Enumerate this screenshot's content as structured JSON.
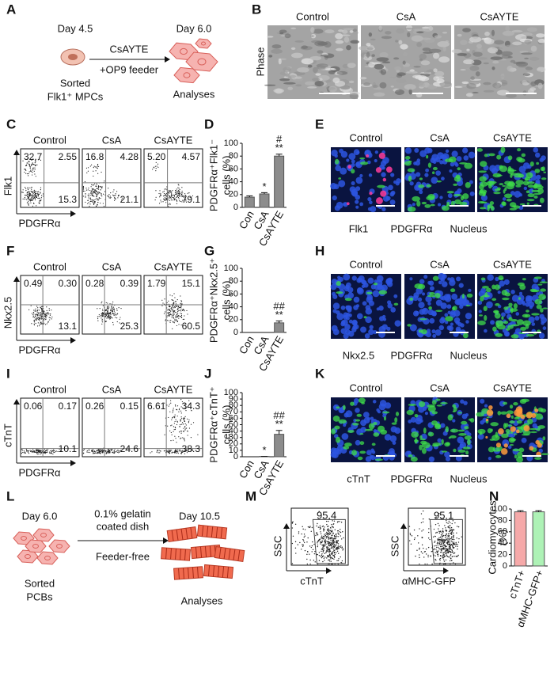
{
  "panel_a": {
    "label": "A",
    "day_start": "Day 4.5",
    "day_end": "Day 6.0",
    "treatment": "CsAYTE",
    "condition": "+OP9 feeder",
    "source": [
      "Sorted",
      "Flk1⁺ MPCs"
    ],
    "result": "Analyses"
  },
  "panel_b": {
    "label": "B",
    "row_label": "Phase",
    "titles": [
      "Control",
      "CsA",
      "CsAYTE"
    ]
  },
  "flow_panels": [
    {
      "label": "C",
      "ylabel": "Flk1",
      "xlabel": "PDGFRα",
      "ylabel_color": "#e02020",
      "xlabel_color": "#1a9a2a",
      "plots": [
        {
          "title": "Control",
          "quadrants": [
            "32.7",
            "2.55",
            "15.3"
          ]
        },
        {
          "title": "CsA",
          "quadrants": [
            "16.8",
            "4.28",
            "21.1"
          ]
        },
        {
          "title": "CsAYTE",
          "quadrants": [
            "5.20",
            "4.57",
            "79.1"
          ]
        }
      ]
    },
    {
      "label": "F",
      "ylabel": "Nkx2.5",
      "xlabel": "PDGFRα",
      "ylabel_color": "#e02020",
      "xlabel_color": "#1a9a2a",
      "plots": [
        {
          "title": "Control",
          "quadrants": [
            "0.49",
            "0.30",
            "13.1"
          ]
        },
        {
          "title": "CsA",
          "quadrants": [
            "0.28",
            "0.39",
            "25.3"
          ]
        },
        {
          "title": "CsAYTE",
          "quadrants": [
            "1.79",
            "15.1",
            "60.5"
          ]
        }
      ]
    },
    {
      "label": "I",
      "ylabel": "cTnT",
      "xlabel": "PDGFRα",
      "ylabel_color": "#e02020",
      "xlabel_color": "#1a9a2a",
      "plots": [
        {
          "title": "Control",
          "quadrants": [
            "0.06",
            "0.17",
            "10.1"
          ]
        },
        {
          "title": "CsA",
          "quadrants": [
            "0.26",
            "0.15",
            "24.6"
          ]
        },
        {
          "title": "CsAYTE",
          "quadrants": [
            "6.61",
            "34.3",
            "38.3"
          ]
        }
      ]
    }
  ],
  "image_panels": [
    {
      "label": "E",
      "titles": [
        "Control",
        "CsA",
        "CsAYTE"
      ],
      "legend": [
        {
          "text": "Flk1",
          "color": "#e02020"
        },
        {
          "text": "PDGFRα",
          "color": "#1a9a2a"
        },
        {
          "text": "Nucleus",
          "color": "#1a8ad0"
        }
      ]
    },
    {
      "label": "H",
      "titles": [
        "Control",
        "CsA",
        "CsAYTE"
      ],
      "legend": [
        {
          "text": "Nkx2.5",
          "color": "#e02020"
        },
        {
          "text": "PDGFRα",
          "color": "#1a9a2a"
        },
        {
          "text": "Nucleus",
          "color": "#1a8ad0"
        }
      ]
    },
    {
      "label": "K",
      "titles": [
        "Control",
        "CsA",
        "CsAYTE"
      ],
      "legend": [
        {
          "text": "cTnT",
          "color": "#e02020"
        },
        {
          "text": "PDGFRα",
          "color": "#1a9a2a"
        },
        {
          "text": "Nucleus",
          "color": "#1a8ad0"
        }
      ]
    }
  ],
  "chart_data": [
    {
      "type": "bar",
      "label": "D",
      "ylabel": [
        "PDGFRα⁺Flk1⁻",
        "cells (%)"
      ],
      "ylabel_colors": [
        "#1a9a2a",
        "#111111"
      ],
      "categories": [
        "Con",
        "CsA",
        "CsAYTE"
      ],
      "values": [
        16,
        21,
        80
      ],
      "errors": [
        2,
        2,
        3
      ],
      "annotations": [
        null,
        [
          "*"
        ],
        [
          "#",
          "**"
        ]
      ],
      "color": "#8c8c8c",
      "ylim": [
        0,
        100
      ],
      "yticks": [
        0,
        20,
        40,
        60,
        80,
        100
      ]
    },
    {
      "type": "bar",
      "label": "G",
      "ylabel": [
        "PDGFRα⁺Nkx2.5⁺",
        "cells (%)"
      ],
      "ylabel_colors": [
        "#1a9a2a",
        "#111111"
      ],
      "categories": [
        "Con",
        "CsA",
        "CsAYTE"
      ],
      "values": [
        0,
        0,
        15
      ],
      "errors": [
        0,
        0,
        3
      ],
      "annotations": [
        null,
        null,
        [
          "##",
          "**"
        ]
      ],
      "color": "#8c8c8c",
      "ylim": [
        0,
        100
      ],
      "yticks": [
        0,
        20,
        40,
        60,
        80,
        100
      ]
    },
    {
      "type": "bar",
      "label": "J",
      "ylabel": [
        "PDGFRα⁺cTnT⁺",
        "cells (%)"
      ],
      "ylabel_colors": [
        "#1a9a2a",
        "#111111"
      ],
      "categories": [
        "Con",
        "CsA",
        "CsAYTE"
      ],
      "values": [
        0,
        0.5,
        35
      ],
      "errors": [
        0,
        0,
        6
      ],
      "annotations": [
        null,
        [
          "*"
        ],
        [
          "##",
          "**"
        ]
      ],
      "color": "#8c8c8c",
      "ylim": [
        0,
        100
      ],
      "yticks": [
        0,
        10,
        20,
        30,
        40,
        50,
        60,
        70,
        80,
        90,
        100
      ]
    },
    {
      "type": "bar",
      "label": "N",
      "ylabel": [
        "Cardiomyocytes",
        "(%)"
      ],
      "ylabel_colors": [
        "#111111",
        "#111111"
      ],
      "categories": [
        "cTnT+",
        "αMHC-GFP+"
      ],
      "category_colors": [
        "#e02020",
        "#1a9a2a"
      ],
      "values": [
        95,
        95
      ],
      "errors": [
        2,
        2
      ],
      "annotations": [
        null,
        null
      ],
      "colors": [
        "#f6a9a9",
        "#aef2b6"
      ],
      "ylim": [
        0,
        100
      ],
      "yticks": [
        0,
        20,
        40,
        60,
        80,
        100
      ]
    }
  ],
  "panel_l": {
    "label": "L",
    "day_start": "Day 6.0",
    "source": [
      "Sorted",
      "PCBs"
    ],
    "condition": [
      "0.1% gelatin",
      "coated dish"
    ],
    "condition_2": "Feeder-free",
    "day_end": "Day 10.5",
    "result": "Analyses"
  },
  "panel_m": {
    "label": "M",
    "plots": [
      {
        "gate_value": "95.4",
        "ylabel": "SSC",
        "xlabel": "cTnT",
        "xlabel_color": "#e02020"
      },
      {
        "gate_value": "95.1",
        "ylabel": "SSC",
        "xlabel": "αMHC-GFP",
        "xlabel_color": "#1a9a2a"
      }
    ]
  }
}
